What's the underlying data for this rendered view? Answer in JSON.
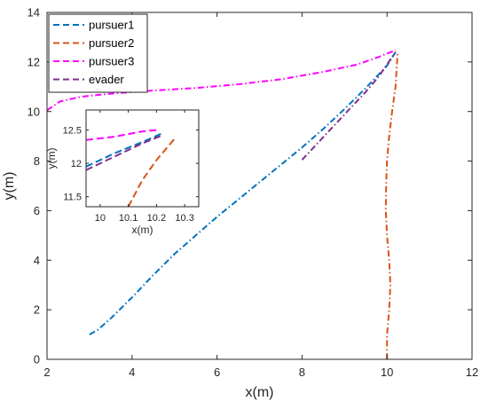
{
  "chart_data": [
    {
      "type": "line",
      "title": "",
      "xlabel": "x(m)",
      "ylabel": "y(m)",
      "xlim": [
        2,
        12
      ],
      "ylim": [
        0,
        14
      ],
      "xticks": [
        "2",
        "4",
        "6",
        "8",
        "10",
        "12"
      ],
      "yticks": [
        "0",
        "2",
        "4",
        "6",
        "8",
        "10",
        "12",
        "14"
      ],
      "grid": false,
      "legend_position": "top-left",
      "series": [
        {
          "name": "pursuer1",
          "color": "#0072BD",
          "style": "dash-dot",
          "x": [
            3.0,
            3.2,
            3.5,
            4.0,
            4.5,
            5.0,
            5.5,
            6.0,
            6.5,
            7.0,
            7.5,
            8.0,
            8.5,
            9.0,
            9.5,
            10.0,
            10.2
          ],
          "y": [
            1.0,
            1.2,
            1.65,
            2.5,
            3.4,
            4.25,
            5.0,
            5.75,
            6.45,
            7.15,
            7.85,
            8.55,
            9.3,
            10.1,
            10.95,
            11.85,
            12.4
          ]
        },
        {
          "name": "pursuer2",
          "color": "#D95319",
          "style": "dash-dot",
          "x": [
            10.0,
            10.0,
            10.05,
            10.08,
            10.05,
            10.0,
            9.97,
            9.98,
            10.0,
            10.05,
            10.12,
            10.2,
            10.25
          ],
          "y": [
            0.0,
            1.0,
            2.0,
            3.0,
            4.0,
            5.0,
            6.0,
            7.0,
            8.0,
            9.0,
            10.0,
            11.0,
            12.4
          ]
        },
        {
          "name": "pursuer3",
          "color": "#FF00FF",
          "style": "dash-dot",
          "x": [
            2.0,
            2.3,
            2.8,
            3.5,
            4.5,
            5.5,
            6.5,
            7.5,
            8.5,
            9.3,
            9.8,
            10.2
          ],
          "y": [
            10.05,
            10.4,
            10.6,
            10.72,
            10.85,
            10.95,
            11.1,
            11.3,
            11.6,
            11.9,
            12.2,
            12.48
          ]
        },
        {
          "name": "evader",
          "color": "#7E2F8E",
          "style": "dash-dot",
          "x": [
            8.0,
            8.3,
            8.6,
            8.9,
            9.2,
            9.5,
            9.8,
            10.2
          ],
          "y": [
            8.05,
            8.6,
            9.15,
            9.7,
            10.25,
            10.8,
            11.4,
            12.4
          ]
        }
      ]
    },
    {
      "type": "line",
      "title": "",
      "xlabel": "x(m)",
      "ylabel": "y(m)",
      "xlim": [
        9.95,
        10.35
      ],
      "ylim": [
        11.35,
        12.8
      ],
      "xticks": [
        "10",
        "10.1",
        "10.2",
        "10.3"
      ],
      "yticks": [
        "11.5",
        "12",
        "12.5"
      ],
      "grid": false,
      "series": [
        {
          "name": "pursuer1",
          "color": "#0072BD",
          "style": "dashed",
          "x": [
            9.95,
            10.05,
            10.15,
            10.22
          ],
          "y": [
            11.95,
            12.15,
            12.32,
            12.45
          ]
        },
        {
          "name": "pursuer2",
          "color": "#D95319",
          "style": "dashed",
          "x": [
            10.1,
            10.15,
            10.2,
            10.25,
            10.27
          ],
          "y": [
            11.35,
            11.75,
            12.05,
            12.3,
            12.4
          ]
        },
        {
          "name": "pursuer3",
          "color": "#FF00FF",
          "style": "dashed",
          "x": [
            9.95,
            10.05,
            10.15,
            10.2
          ],
          "y": [
            12.35,
            12.4,
            12.48,
            12.5
          ]
        },
        {
          "name": "evader",
          "color": "#7E2F8E",
          "style": "dashed",
          "x": [
            9.95,
            10.05,
            10.15,
            10.22
          ],
          "y": [
            11.9,
            12.1,
            12.3,
            12.42
          ]
        }
      ]
    }
  ]
}
